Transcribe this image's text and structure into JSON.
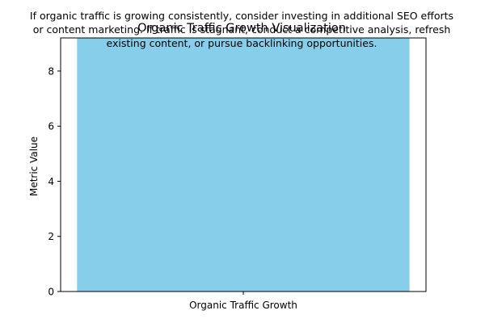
{
  "chart_data": {
    "type": "bar",
    "title": "Organic Traffic Growth Visualization",
    "categories": [
      "Organic Traffic Growth"
    ],
    "values": [
      9.2
    ],
    "xlabel": "",
    "ylabel": "Metric Value",
    "ylim": [
      0,
      9.2
    ],
    "yticks": [
      0,
      2,
      4,
      6,
      8
    ],
    "grid": false,
    "bar_color": "#87ceeb",
    "annotation": {
      "lines": [
        "If organic traffic is growing consistently, consider investing in additional SEO efforts",
        "or content marketing. If traffic is stagnant, conduct a competitive analysis, refresh",
        "existing content, or pursue backlinking opportunities."
      ]
    }
  }
}
